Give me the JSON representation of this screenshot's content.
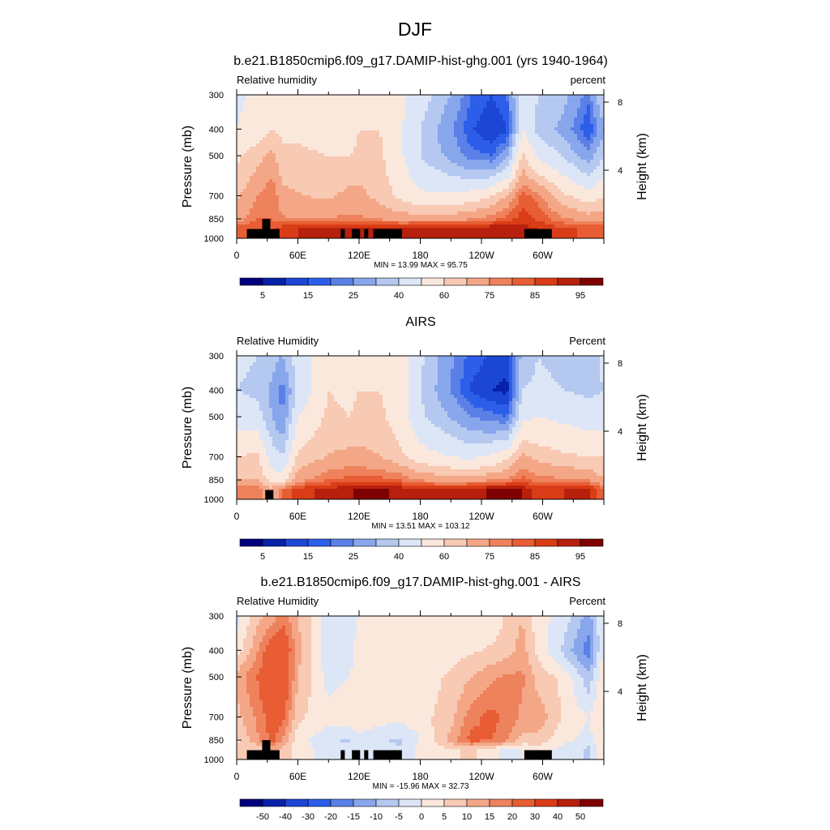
{
  "page_title": "DJF",
  "chart_data": [
    {
      "type": "heatmap",
      "title": "b.e21.B1850cmip6.f09_g17.DAMIP-hist-ghg.001 (yrs 1940-1964)",
      "left_label": "Relative humidity",
      "right_label": "percent",
      "ylabel": "Pressure (mb)",
      "ylabel_right": "Height (km)",
      "x_ticks": [
        "0",
        "60E",
        "120E",
        "180",
        "120W",
        "60W"
      ],
      "x_tick_lon": [
        0,
        60,
        120,
        180,
        240,
        300
      ],
      "xlim": [
        0,
        360
      ],
      "y_ticks": [
        "300",
        "400",
        "500",
        "700",
        "850",
        "1000"
      ],
      "y_tick_values": [
        300,
        400,
        500,
        700,
        850,
        1000
      ],
      "ylim": [
        1000,
        300
      ],
      "y_scale": "log",
      "height_ticks": [
        "8",
        "4"
      ],
      "height_tick_km": [
        8,
        4
      ],
      "stats": "MIN =  13.99  MAX =  95.75",
      "colorbar_labels": [
        "5",
        "15",
        "25",
        "40",
        "60",
        "75",
        "85",
        "95"
      ],
      "colorbar_colors": [
        "#00007f",
        "#0722a8",
        "#1c46d4",
        "#2c5eea",
        "#5a80e8",
        "#88a6ec",
        "#b4c8f0",
        "#dce6f7",
        "#fbe8dd",
        "#f8c9b3",
        "#f4a787",
        "#ee825c",
        "#e85d33",
        "#d93c16",
        "#b7200d",
        "#7f0000"
      ],
      "field": {
        "lon": [
          0,
          20,
          35,
          45,
          60,
          90,
          110,
          120,
          140,
          160,
          180,
          210,
          230,
          250,
          265,
          280,
          295,
          320,
          345,
          360
        ],
        "p": [
          300,
          400,
          500,
          700,
          850,
          920
        ],
        "values": [
          [
            48,
            52,
            50,
            52,
            56,
            55,
            52,
            55,
            60,
            52,
            45,
            32,
            20,
            15,
            20,
            48,
            40,
            35,
            22,
            42
          ],
          [
            50,
            55,
            60,
            58,
            58,
            55,
            55,
            60,
            60,
            52,
            40,
            26,
            16,
            10,
            14,
            50,
            38,
            30,
            15,
            32
          ],
          [
            58,
            65,
            70,
            62,
            62,
            60,
            60,
            62,
            62,
            52,
            40,
            30,
            22,
            20,
            30,
            62,
            48,
            40,
            28,
            40
          ],
          [
            66,
            75,
            80,
            70,
            68,
            66,
            70,
            70,
            65,
            58,
            52,
            52,
            55,
            60,
            68,
            82,
            78,
            62,
            55,
            60
          ],
          [
            72,
            80,
            80,
            76,
            74,
            76,
            76,
            76,
            74,
            72,
            72,
            72,
            74,
            78,
            82,
            88,
            84,
            76,
            72,
            72
          ],
          [
            84,
            84,
            84,
            88,
            90,
            91,
            92,
            92,
            92,
            91,
            92,
            92,
            93,
            94,
            94,
            92,
            90,
            86,
            84,
            84
          ]
        ]
      },
      "terrain": [
        [
          10,
          25,
          925
        ],
        [
          25,
          33,
          850
        ],
        [
          33,
          42,
          925
        ],
        [
          102,
          106,
          925
        ],
        [
          113,
          121,
          925
        ],
        [
          125,
          129,
          925
        ],
        [
          134,
          162,
          925
        ],
        [
          282,
          309,
          925
        ]
      ]
    },
    {
      "type": "heatmap",
      "title": "AIRS",
      "left_label": "Relative Humidity",
      "right_label": "Percent",
      "ylabel": "Pressure (mb)",
      "ylabel_right": "Height (km)",
      "x_ticks": [
        "0",
        "60E",
        "120E",
        "180",
        "120W",
        "60W"
      ],
      "x_tick_lon": [
        0,
        60,
        120,
        180,
        240,
        300
      ],
      "xlim": [
        0,
        360
      ],
      "y_ticks": [
        "300",
        "400",
        "500",
        "700",
        "850",
        "1000"
      ],
      "y_tick_values": [
        300,
        400,
        500,
        700,
        850,
        1000
      ],
      "ylim": [
        1000,
        300
      ],
      "y_scale": "log",
      "height_ticks": [
        "8",
        "4"
      ],
      "height_tick_km": [
        8,
        4
      ],
      "stats": "MIN =  13.51  MAX = 103.12",
      "colorbar_labels": [
        "5",
        "15",
        "25",
        "40",
        "60",
        "75",
        "85",
        "95"
      ],
      "colorbar_colors": [
        "#00007f",
        "#0722a8",
        "#1c46d4",
        "#2c5eea",
        "#5a80e8",
        "#88a6ec",
        "#b4c8f0",
        "#dce6f7",
        "#fbe8dd",
        "#f8c9b3",
        "#f4a787",
        "#ee825c",
        "#e85d33",
        "#d93c16",
        "#b7200d",
        "#7f0000"
      ],
      "field": {
        "lon": [
          0,
          20,
          35,
          45,
          60,
          90,
          110,
          120,
          140,
          160,
          180,
          210,
          230,
          250,
          265,
          280,
          295,
          320,
          345,
          360
        ],
        "p": [
          300,
          400,
          500,
          700,
          850,
          920
        ],
        "values": [
          [
            42,
            40,
            36,
            32,
            45,
            58,
            56,
            58,
            60,
            56,
            42,
            26,
            18,
            14,
            12,
            35,
            40,
            38,
            35,
            42
          ],
          [
            40,
            38,
            30,
            22,
            42,
            60,
            58,
            60,
            60,
            56,
            40,
            25,
            14,
            10,
            8,
            40,
            42,
            40,
            38,
            40
          ],
          [
            45,
            45,
            32,
            25,
            50,
            62,
            60,
            62,
            62,
            56,
            42,
            32,
            25,
            22,
            20,
            48,
            50,
            48,
            45,
            45
          ],
          [
            60,
            62,
            45,
            40,
            62,
            68,
            70,
            70,
            68,
            62,
            55,
            50,
            48,
            52,
            58,
            70,
            65,
            62,
            60,
            60
          ],
          [
            68,
            68,
            55,
            55,
            72,
            80,
            82,
            82,
            82,
            80,
            74,
            72,
            72,
            74,
            76,
            82,
            78,
            76,
            74,
            68
          ],
          [
            78,
            78,
            70,
            80,
            88,
            92,
            94,
            96,
            96,
            94,
            90,
            90,
            92,
            96,
            98,
            95,
            88,
            90,
            92,
            78
          ]
        ]
      },
      "terrain": [
        [
          28,
          36,
          925
        ]
      ]
    },
    {
      "type": "heatmap",
      "title": "b.e21.B1850cmip6.f09_g17.DAMIP-hist-ghg.001 - AIRS",
      "left_label": "Relative Humidity",
      "right_label": "Percent",
      "ylabel": "Pressure (mb)",
      "ylabel_right": "Height (km)",
      "x_ticks": [
        "0",
        "60E",
        "120E",
        "180",
        "120W",
        "60W"
      ],
      "x_tick_lon": [
        0,
        60,
        120,
        180,
        240,
        300
      ],
      "xlim": [
        0,
        360
      ],
      "y_ticks": [
        "300",
        "400",
        "500",
        "700",
        "850",
        "1000"
      ],
      "y_tick_values": [
        300,
        400,
        500,
        700,
        850,
        1000
      ],
      "ylim": [
        1000,
        300
      ],
      "y_scale": "log",
      "height_ticks": [
        "8",
        "4"
      ],
      "height_tick_km": [
        8,
        4
      ],
      "stats": "MIN = -15.96  MAX =  32.73",
      "colorbar_labels": [
        "-50",
        "-40",
        "-30",
        "-20",
        "-15",
        "-10",
        "-5",
        "0",
        "5",
        "10",
        "15",
        "20",
        "30",
        "40",
        "50"
      ],
      "colorbar_colors": [
        "#00007f",
        "#0722a8",
        "#1c46d4",
        "#2c5eea",
        "#5a80e8",
        "#88a6ec",
        "#b4c8f0",
        "#dce6f7",
        "#fbe8dd",
        "#f8c9b3",
        "#f4a787",
        "#ee825c",
        "#e85d33",
        "#d93c16",
        "#b7200d",
        "#7f0000"
      ],
      "field": {
        "lon": [
          0,
          20,
          35,
          45,
          60,
          90,
          110,
          120,
          140,
          160,
          180,
          210,
          230,
          250,
          265,
          280,
          295,
          320,
          345,
          360
        ],
        "p": [
          300,
          400,
          500,
          700,
          850,
          920
        ],
        "values": [
          [
            -2,
            8,
            12,
            18,
            10,
            -3,
            -2,
            0,
            2,
            1,
            2,
            4,
            2,
            1,
            6,
            10,
            2,
            -2,
            -12,
            0
          ],
          [
            2,
            14,
            26,
            28,
            12,
            -4,
            -2,
            2,
            4,
            3,
            2,
            3,
            4,
            6,
            8,
            12,
            4,
            -6,
            -18,
            2
          ],
          [
            12,
            20,
            28,
            28,
            10,
            -2,
            0,
            2,
            4,
            2,
            2,
            6,
            10,
            14,
            16,
            16,
            8,
            4,
            -8,
            4
          ],
          [
            8,
            16,
            24,
            22,
            6,
            2,
            4,
            4,
            2,
            2,
            3,
            8,
            18,
            22,
            18,
            14,
            14,
            4,
            0,
            6
          ],
          [
            4,
            14,
            22,
            14,
            2,
            -4,
            -6,
            -2,
            -4,
            -6,
            0,
            12,
            22,
            20,
            16,
            8,
            8,
            2,
            -2,
            4
          ],
          [
            6,
            6,
            12,
            8,
            2,
            -2,
            -3,
            -4,
            -5,
            -4,
            2,
            4,
            6,
            2,
            -2,
            0,
            2,
            -2,
            -6,
            6
          ]
        ]
      },
      "terrain": [
        [
          10,
          25,
          925
        ],
        [
          25,
          33,
          850
        ],
        [
          33,
          42,
          925
        ],
        [
          102,
          106,
          925
        ],
        [
          113,
          121,
          925
        ],
        [
          125,
          129,
          925
        ],
        [
          134,
          162,
          925
        ],
        [
          282,
          309,
          925
        ]
      ]
    }
  ]
}
